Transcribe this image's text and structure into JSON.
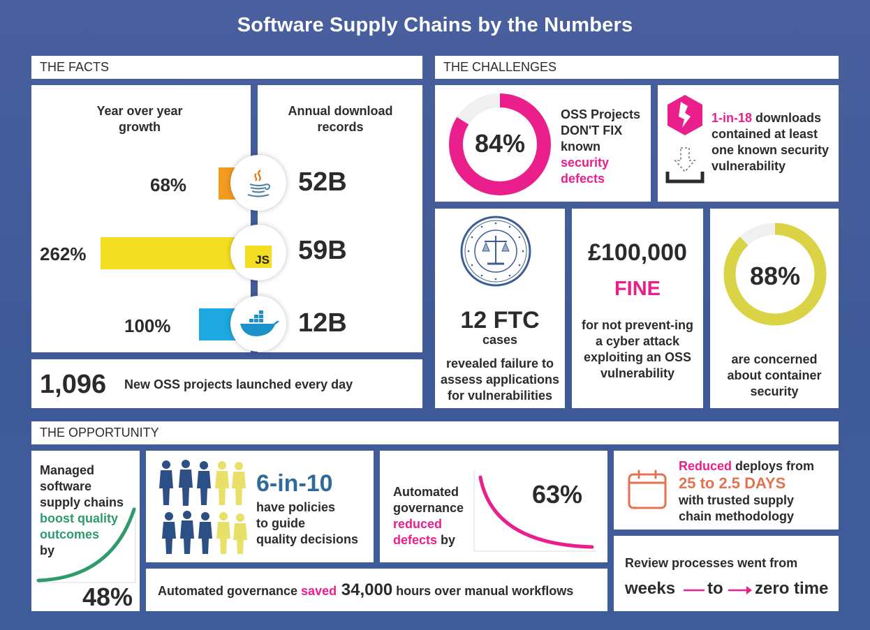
{
  "title": "Software Supply Chains by the Numbers",
  "facts": {
    "header": "THE FACTS",
    "growth_label": "Year over year growth",
    "downloads_label": "Annual download records",
    "rows": [
      {
        "growth": "68%",
        "growth_value": 68,
        "downloads": "52B",
        "icon": "java-icon",
        "color": "#f39a21"
      },
      {
        "growth": "262%",
        "growth_value": 262,
        "downloads": "59B",
        "icon": "javascript-icon",
        "color": "#f4de22",
        "icon_text": "JS"
      },
      {
        "growth": "100%",
        "growth_value": 100,
        "downloads": "12B",
        "icon": "docker-icon",
        "color": "#1da9e0"
      }
    ],
    "new_projects_number": "1,096",
    "new_projects_text": "New OSS projects launched every day"
  },
  "challenges": {
    "header": "THE CHALLENGES",
    "oss": {
      "percent": "84%",
      "percent_value": 84,
      "line1": "OSS Projects",
      "line2": "DON'T FIX",
      "line3": "known",
      "line4": "security",
      "line5": "defects"
    },
    "downloads": {
      "highlight": "1-in-18",
      "text1": " downloads",
      "text2": "contained at least",
      "text3": "one known ",
      "text3b": "security",
      "text4": "vulnerability"
    },
    "ftc": {
      "number": "12 FTC",
      "sub": "cases",
      "text": "revealed failure to assess applications for vulnerabilities"
    },
    "fine": {
      "amount": "£100,000",
      "label": "FINE",
      "text": "for not prevent-ing a cyber attack exploiting an OSS vulnerability"
    },
    "container": {
      "percent": "88%",
      "percent_value": 88,
      "text": "are concerned about container security"
    }
  },
  "opportunity": {
    "header": "THE OPPORTUNITY",
    "quality": {
      "line1": "Managed",
      "line2": "software",
      "line3": "supply chains",
      "line4": "boost quality",
      "line5": "outcomes",
      "line6": "by",
      "percent": "48%"
    },
    "policies": {
      "stat": "6-in-10",
      "line1": "have policies",
      "line2": "to guide",
      "line3": "quality decisions"
    },
    "defects": {
      "line1": "Automated",
      "line2": "governance",
      "line3": "reduced",
      "line4": "defects",
      "line4b": " by",
      "percent": "63%"
    },
    "deploys": {
      "highlight": "Reduced",
      "line1": " deploys from",
      "range": "25 to 2.5 DAYS",
      "line2": "with trusted supply",
      "line3": "chain methodology"
    },
    "hours": {
      "pre": "Automated governance ",
      "saved": "saved",
      "number": " 34,000",
      "post": " hours over manual workflows"
    },
    "review": {
      "line": "Review processes went from",
      "from": "weeks",
      "to": "to",
      "end": "zero time"
    }
  },
  "colors": {
    "pink": "#ea1f8c",
    "yellow_ring": "#d9d345",
    "green": "#2f9a6c",
    "orange": "#e2734f",
    "blue": "#2e6b9c",
    "navy_figure": "#2c4f86",
    "yellow_figure": "#e9e06a"
  }
}
